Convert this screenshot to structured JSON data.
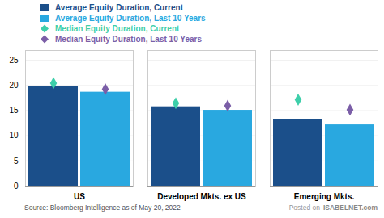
{
  "chart_data": {
    "type": "bar",
    "categories": [
      "US",
      "Developed Mkts. ex US",
      "Emerging Mkts."
    ],
    "series": [
      {
        "name": "Average Equity Duration, Current",
        "type": "bar",
        "color": "#1b4f8a",
        "values": [
          19.8,
          15.8,
          13.3
        ]
      },
      {
        "name": "Average Equity Duration, Last 10 Years",
        "type": "bar",
        "color": "#29a8e0",
        "values": [
          18.7,
          15.1,
          12.2
        ]
      },
      {
        "name": "Median Equity Duration, Current",
        "type": "scatter",
        "marker": "diamond",
        "color": "#3ecfaa",
        "values": [
          20.5,
          16.5,
          17.2
        ]
      },
      {
        "name": "Median Equity Duration, Last 10 Years",
        "type": "scatter",
        "marker": "diamond",
        "color": "#7b5ea7",
        "values": [
          19.3,
          16.0,
          15.2
        ]
      }
    ],
    "ylim": [
      0,
      27
    ],
    "yticks": [
      0,
      5,
      10,
      15,
      20,
      25
    ],
    "grid": true,
    "legend": "top",
    "annotations": [
      "Source: Bloomberg Intelligence as of May 20, 2022",
      "Posted on",
      "ISABELNET.com"
    ]
  }
}
